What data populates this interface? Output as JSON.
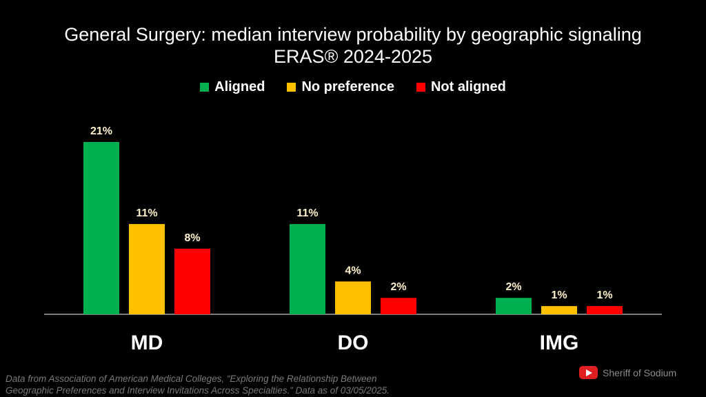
{
  "chart_data": {
    "type": "bar",
    "title": "General Surgery: median interview probability by geographic signaling",
    "subtitle": "ERAS® 2024-2025",
    "categories": [
      "MD",
      "DO",
      "IMG"
    ],
    "series": [
      {
        "name": "Aligned",
        "color": "#00b050",
        "values": [
          21,
          11,
          2
        ],
        "labels": [
          "21%",
          "11%",
          "2%"
        ]
      },
      {
        "name": "No preference",
        "color": "#ffc000",
        "values": [
          11,
          4,
          1
        ],
        "labels": [
          "11%",
          "4%",
          "1%"
        ]
      },
      {
        "name": "Not aligned",
        "color": "#ff0000",
        "values": [
          8,
          2,
          1
        ],
        "labels": [
          "8%",
          "2%",
          "1%"
        ]
      }
    ],
    "ylim": [
      0,
      21
    ],
    "legend_position": "top",
    "grid": false,
    "label_color": "#fff2cc"
  },
  "footnote": {
    "line1": "Data from Association of American Medical Colleges, “Exploring the Relationship Between",
    "line2": "Geographic Preferences and Interview Invitations Across Specialties.” Data as of 03/05/2025."
  },
  "brand": {
    "name": "Sheriff of Sodium",
    "icon": "youtube-icon"
  }
}
